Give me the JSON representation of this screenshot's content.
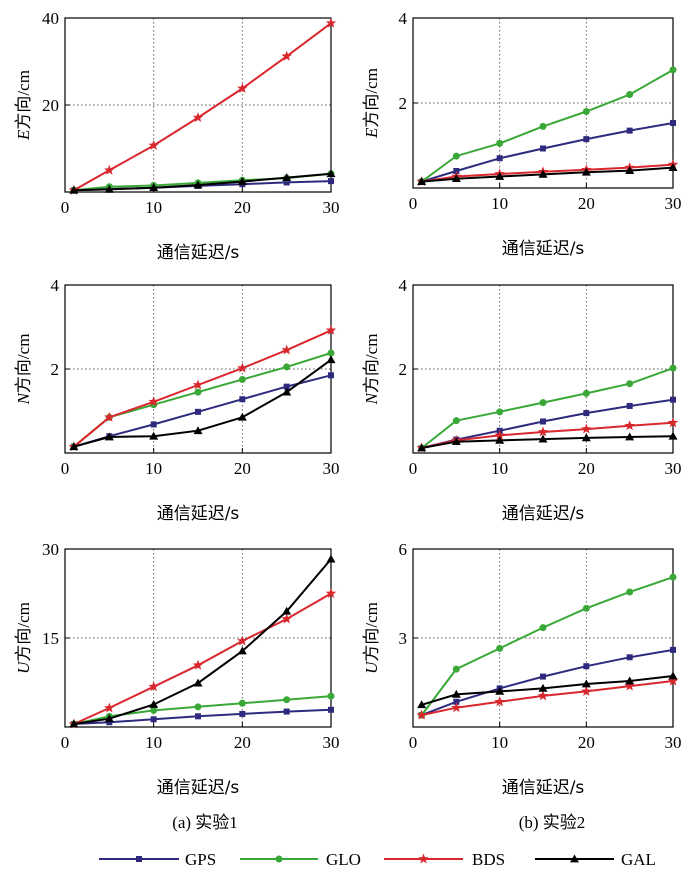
{
  "series_meta": [
    {
      "key": "GPS",
      "color": "#2e2a7e",
      "marker": "square"
    },
    {
      "key": "GLO",
      "color": "#3aa837",
      "marker": "circle"
    },
    {
      "key": "BDS",
      "color": "#d9272e",
      "marker": "star"
    },
    {
      "key": "GAL",
      "color": "#000000",
      "marker": "triangle"
    }
  ],
  "captions": {
    "left": "(a) 实验1",
    "right": "(b) 实验2"
  },
  "chart_data": [
    {
      "type": "line",
      "title": "",
      "panel": "a-E",
      "ylabel_var": "E",
      "ylabel_text": "方向/cm",
      "xlabel": "通信延迟/s",
      "x": [
        1,
        5,
        10,
        15,
        20,
        25,
        30
      ],
      "xlim": [
        0,
        30
      ],
      "ylim": [
        0,
        40
      ],
      "xticks": [
        0,
        10,
        20,
        30
      ],
      "yticks": [
        20,
        40
      ],
      "series": [
        {
          "name": "GPS",
          "values": [
            0.4,
            0.7,
            1.0,
            1.4,
            1.8,
            2.2,
            2.5
          ]
        },
        {
          "name": "GLO",
          "values": [
            0.4,
            1.2,
            1.5,
            2.1,
            2.7,
            3.2,
            4.2
          ]
        },
        {
          "name": "BDS",
          "values": [
            0.4,
            5.0,
            10.7,
            17.1,
            23.8,
            31.2,
            38.8
          ]
        },
        {
          "name": "GAL",
          "values": [
            0.4,
            0.6,
            1.0,
            1.6,
            2.4,
            3.3,
            4.2
          ]
        }
      ]
    },
    {
      "type": "line",
      "title": "",
      "panel": "b-E",
      "ylabel_var": "E",
      "ylabel_text": "方向/cm",
      "xlabel": "通信延迟/s",
      "x": [
        1,
        5,
        10,
        15,
        20,
        25,
        30
      ],
      "xlim": [
        0,
        30
      ],
      "ylim": [
        0,
        4
      ],
      "xticks": [
        0,
        10,
        20,
        30
      ],
      "yticks": [
        2,
        4
      ],
      "series": [
        {
          "name": "GPS",
          "values": [
            0.15,
            0.4,
            0.7,
            0.93,
            1.15,
            1.35,
            1.53
          ]
        },
        {
          "name": "GLO",
          "values": [
            0.15,
            0.75,
            1.05,
            1.45,
            1.8,
            2.2,
            2.78
          ]
        },
        {
          "name": "BDS",
          "values": [
            0.15,
            0.27,
            0.33,
            0.38,
            0.43,
            0.48,
            0.55
          ]
        },
        {
          "name": "GAL",
          "values": [
            0.15,
            0.22,
            0.27,
            0.32,
            0.37,
            0.41,
            0.48
          ]
        }
      ]
    },
    {
      "type": "line",
      "title": "",
      "panel": "a-N",
      "ylabel_var": "N",
      "ylabel_text": "方向/cm",
      "xlabel": "通信延迟/s",
      "x": [
        1,
        5,
        10,
        15,
        20,
        25,
        30
      ],
      "xlim": [
        0,
        30
      ],
      "ylim": [
        0,
        4
      ],
      "xticks": [
        0,
        10,
        20,
        30
      ],
      "yticks": [
        2,
        4
      ],
      "series": [
        {
          "name": "GPS",
          "values": [
            0.15,
            0.4,
            0.68,
            0.98,
            1.28,
            1.58,
            1.85
          ]
        },
        {
          "name": "GLO",
          "values": [
            0.15,
            0.85,
            1.15,
            1.45,
            1.75,
            2.05,
            2.38
          ]
        },
        {
          "name": "BDS",
          "values": [
            0.15,
            0.85,
            1.22,
            1.62,
            2.02,
            2.45,
            2.92
          ]
        },
        {
          "name": "GAL",
          "values": [
            0.15,
            0.38,
            0.4,
            0.53,
            0.85,
            1.45,
            2.22
          ]
        }
      ]
    },
    {
      "type": "line",
      "title": "",
      "panel": "b-N",
      "ylabel_var": "N",
      "ylabel_text": "方向/cm",
      "xlabel": "通信延迟/s",
      "x": [
        1,
        5,
        10,
        15,
        20,
        25,
        30
      ],
      "xlim": [
        0,
        30
      ],
      "ylim": [
        0,
        4
      ],
      "xticks": [
        0,
        10,
        20,
        30
      ],
      "yticks": [
        2,
        4
      ],
      "series": [
        {
          "name": "GPS",
          "values": [
            0.12,
            0.32,
            0.53,
            0.75,
            0.95,
            1.12,
            1.27
          ]
        },
        {
          "name": "GLO",
          "values": [
            0.12,
            0.77,
            0.98,
            1.2,
            1.42,
            1.65,
            2.02
          ]
        },
        {
          "name": "BDS",
          "values": [
            0.12,
            0.3,
            0.42,
            0.5,
            0.57,
            0.65,
            0.72
          ]
        },
        {
          "name": "GAL",
          "values": [
            0.12,
            0.27,
            0.3,
            0.33,
            0.36,
            0.38,
            0.4
          ]
        }
      ]
    },
    {
      "type": "line",
      "title": "",
      "panel": "a-U",
      "ylabel_var": "U",
      "ylabel_text": "方向/cm",
      "xlabel": "通信延迟/s",
      "x": [
        1,
        5,
        10,
        15,
        20,
        25,
        30
      ],
      "xlim": [
        0,
        30
      ],
      "ylim": [
        0,
        30
      ],
      "xticks": [
        0,
        10,
        20,
        30
      ],
      "yticks": [
        15,
        30
      ],
      "series": [
        {
          "name": "GPS",
          "values": [
            0.5,
            0.8,
            1.3,
            1.8,
            2.2,
            2.6,
            2.9
          ]
        },
        {
          "name": "GLO",
          "values": [
            0.5,
            1.8,
            2.8,
            3.4,
            4.0,
            4.6,
            5.2
          ]
        },
        {
          "name": "BDS",
          "values": [
            0.5,
            3.2,
            6.8,
            10.4,
            14.5,
            18.2,
            22.5
          ]
        },
        {
          "name": "GAL",
          "values": [
            0.5,
            1.4,
            3.8,
            7.4,
            12.8,
            19.5,
            28.3
          ]
        }
      ]
    },
    {
      "type": "line",
      "title": "",
      "panel": "b-U",
      "ylabel_var": "U",
      "ylabel_text": "方向/cm",
      "xlabel": "通信延迟/s",
      "x": [
        1,
        5,
        10,
        15,
        20,
        25,
        30
      ],
      "xlim": [
        0,
        30
      ],
      "ylim": [
        0,
        6
      ],
      "xticks": [
        0,
        10,
        20,
        30
      ],
      "yticks": [
        3,
        6
      ],
      "series": [
        {
          "name": "GPS",
          "values": [
            0.4,
            0.85,
            1.3,
            1.7,
            2.05,
            2.35,
            2.6
          ]
        },
        {
          "name": "GLO",
          "values": [
            0.4,
            1.95,
            2.65,
            3.35,
            4.0,
            4.55,
            5.05
          ]
        },
        {
          "name": "BDS",
          "values": [
            0.4,
            0.65,
            0.85,
            1.05,
            1.2,
            1.38,
            1.55
          ]
        },
        {
          "name": "GAL",
          "values": [
            0.75,
            1.1,
            1.2,
            1.3,
            1.45,
            1.55,
            1.72
          ]
        }
      ]
    }
  ]
}
